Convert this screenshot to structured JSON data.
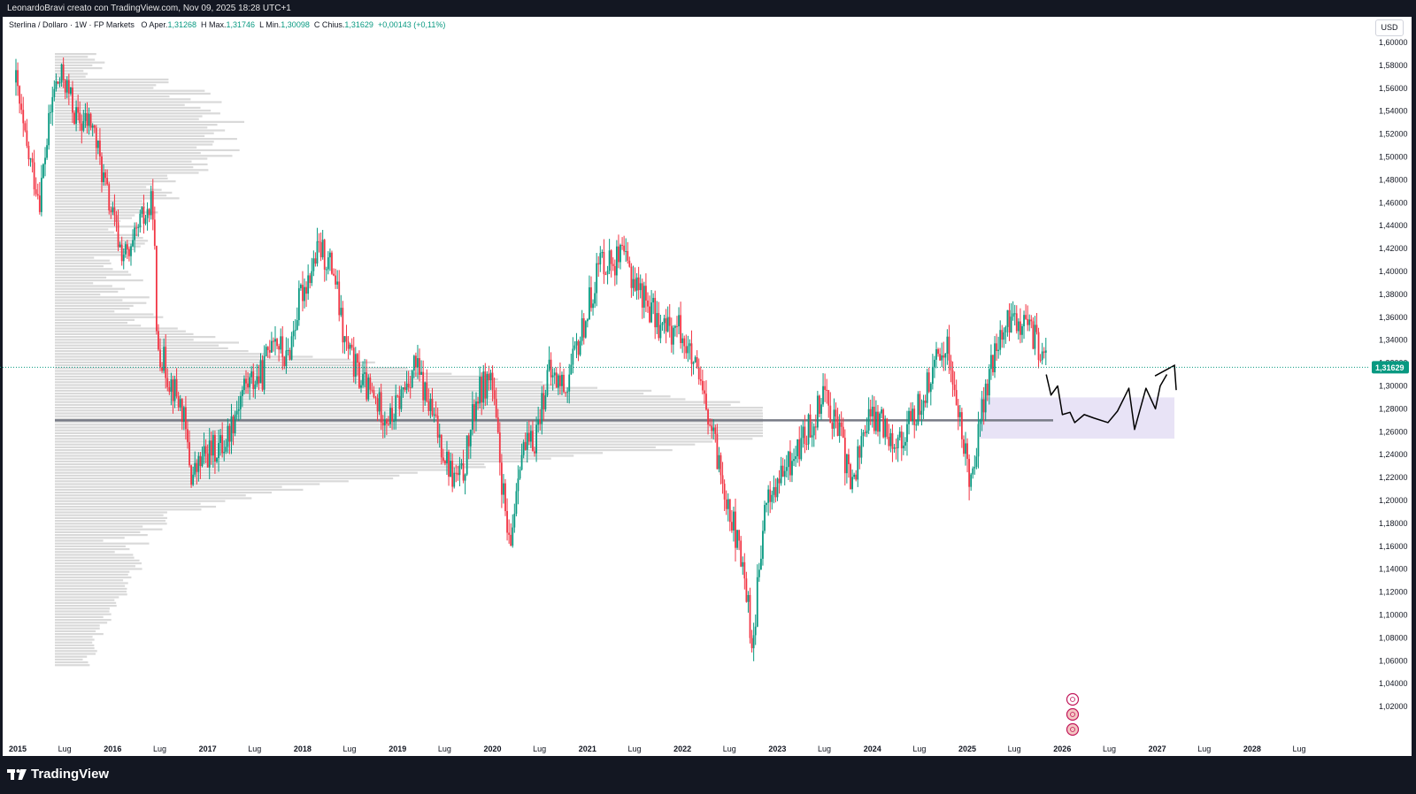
{
  "header": {
    "text": "LeonardoBravi creato con TradingView.com, Nov 09, 2025 18:28 UTC+1"
  },
  "legend": {
    "symbol": "Sterlina / Dollaro · 1W · FP Markets",
    "open_label": "O",
    "open_key": "Aper.",
    "open": "1,31268",
    "high_label": "H",
    "high_key": "Max.",
    "high": "1,31746",
    "low_label": "L",
    "low_key": "Min.",
    "low": "1,30098",
    "close_label": "C",
    "close_key": "Chius.",
    "close": "1,31629",
    "change": "+0,00143 (+0,11%)"
  },
  "currency_button": "USD",
  "last_price": "1,31629",
  "footer": {
    "brand": "TradingView"
  },
  "colors": {
    "up": "#089981",
    "down": "#f23645",
    "volume_profile": "#d9d9d9",
    "poc_line": "#787b86",
    "zone": "#e8e3f6",
    "price_line": "#089981"
  },
  "chart_data": {
    "type": "candlestick",
    "ylim": [
      1.0,
      1.6
    ],
    "y_ticks": [
      "1,60000",
      "1,58000",
      "1,56000",
      "1,54000",
      "1,52000",
      "1,50000",
      "1,48000",
      "1,46000",
      "1,44000",
      "1,42000",
      "1,40000",
      "1,38000",
      "1,36000",
      "1,34000",
      "1,32000",
      "1,30000",
      "1,28000",
      "1,26000",
      "1,24000",
      "1,22000",
      "1,20000",
      "1,18000",
      "1,16000",
      "1,14000",
      "1,12000",
      "1,10000",
      "1,08000",
      "1,06000",
      "1,04000",
      "1,02000"
    ],
    "x_ticks": [
      {
        "label": "2015",
        "year": true
      },
      {
        "label": "Lug",
        "year": false
      },
      {
        "label": "2016",
        "year": true
      },
      {
        "label": "Lug",
        "year": false
      },
      {
        "label": "2017",
        "year": true
      },
      {
        "label": "Lug",
        "year": false
      },
      {
        "label": "2018",
        "year": true
      },
      {
        "label": "Lug",
        "year": false
      },
      {
        "label": "2019",
        "year": true
      },
      {
        "label": "Lug",
        "year": false
      },
      {
        "label": "2020",
        "year": true
      },
      {
        "label": "Lug",
        "year": false
      },
      {
        "label": "2021",
        "year": true
      },
      {
        "label": "Lug",
        "year": false
      },
      {
        "label": "2022",
        "year": true
      },
      {
        "label": "Lug",
        "year": false
      },
      {
        "label": "2023",
        "year": true
      },
      {
        "label": "Lug",
        "year": false
      },
      {
        "label": "2024",
        "year": true
      },
      {
        "label": "Lug",
        "year": false
      },
      {
        "label": "2025",
        "year": true
      },
      {
        "label": "Lug",
        "year": false
      },
      {
        "label": "2026",
        "year": true
      },
      {
        "label": "Lug",
        "year": false
      },
      {
        "label": "2027",
        "year": true
      },
      {
        "label": "Lug",
        "year": false
      },
      {
        "label": "2028",
        "year": true
      },
      {
        "label": "Lug",
        "year": false
      }
    ],
    "price_path": [
      [
        2015.0,
        1.565
      ],
      [
        2015.1,
        1.51
      ],
      [
        2015.25,
        1.465
      ],
      [
        2015.4,
        1.56
      ],
      [
        2015.5,
        1.57
      ],
      [
        2015.65,
        1.53
      ],
      [
        2015.8,
        1.53
      ],
      [
        2015.95,
        1.47
      ],
      [
        2016.1,
        1.42
      ],
      [
        2016.2,
        1.41
      ],
      [
        2016.3,
        1.44
      ],
      [
        2016.45,
        1.46
      ],
      [
        2016.48,
        1.34
      ],
      [
        2016.6,
        1.31
      ],
      [
        2016.75,
        1.28
      ],
      [
        2016.85,
        1.22
      ],
      [
        2017.0,
        1.24
      ],
      [
        2017.2,
        1.25
      ],
      [
        2017.4,
        1.3
      ],
      [
        2017.6,
        1.31
      ],
      [
        2017.7,
        1.35
      ],
      [
        2017.85,
        1.32
      ],
      [
        2018.0,
        1.38
      ],
      [
        2018.2,
        1.42
      ],
      [
        2018.35,
        1.4
      ],
      [
        2018.45,
        1.34
      ],
      [
        2018.6,
        1.31
      ],
      [
        2018.75,
        1.29
      ],
      [
        2018.95,
        1.27
      ],
      [
        2019.1,
        1.3
      ],
      [
        2019.2,
        1.32
      ],
      [
        2019.4,
        1.27
      ],
      [
        2019.6,
        1.22
      ],
      [
        2019.7,
        1.22
      ],
      [
        2019.85,
        1.29
      ],
      [
        2020.0,
        1.31
      ],
      [
        2020.2,
        1.15
      ],
      [
        2020.3,
        1.24
      ],
      [
        2020.45,
        1.25
      ],
      [
        2020.6,
        1.31
      ],
      [
        2020.8,
        1.3
      ],
      [
        2021.0,
        1.36
      ],
      [
        2021.15,
        1.41
      ],
      [
        2021.4,
        1.41
      ],
      [
        2021.6,
        1.38
      ],
      [
        2021.8,
        1.35
      ],
      [
        2022.0,
        1.35
      ],
      [
        2022.2,
        1.3
      ],
      [
        2022.35,
        1.25
      ],
      [
        2022.5,
        1.2
      ],
      [
        2022.7,
        1.12
      ],
      [
        2022.75,
        1.07
      ],
      [
        2022.9,
        1.2
      ],
      [
        2023.0,
        1.21
      ],
      [
        2023.2,
        1.24
      ],
      [
        2023.4,
        1.27
      ],
      [
        2023.5,
        1.3
      ],
      [
        2023.7,
        1.25
      ],
      [
        2023.8,
        1.21
      ],
      [
        2023.95,
        1.27
      ],
      [
        2024.1,
        1.27
      ],
      [
        2024.3,
        1.25
      ],
      [
        2024.5,
        1.28
      ],
      [
        2024.7,
        1.32
      ],
      [
        2024.8,
        1.34
      ],
      [
        2024.95,
        1.26
      ],
      [
        2025.0,
        1.24
      ],
      [
        2025.05,
        1.22
      ],
      [
        2025.2,
        1.29
      ],
      [
        2025.35,
        1.34
      ],
      [
        2025.5,
        1.36
      ],
      [
        2025.6,
        1.355
      ],
      [
        2025.75,
        1.34
      ],
      [
        2025.86,
        1.316
      ]
    ],
    "volume_profile_poc": 1.27,
    "zone": {
      "x_start": 2025.15,
      "x_end": 2027.2,
      "y_low": 1.254,
      "y_high": 1.29
    },
    "projection_path": [
      [
        2025.85,
        1.31
      ],
      [
        2025.9,
        1.292
      ],
      [
        2025.97,
        1.3
      ],
      [
        2026.02,
        1.275
      ],
      [
        2026.1,
        1.277
      ],
      [
        2026.15,
        1.268
      ],
      [
        2026.25,
        1.275
      ],
      [
        2026.35,
        1.272
      ],
      [
        2026.5,
        1.268
      ],
      [
        2026.6,
        1.278
      ],
      [
        2026.72,
        1.298
      ],
      [
        2026.78,
        1.262
      ],
      [
        2026.9,
        1.298
      ],
      [
        2027.0,
        1.28
      ],
      [
        2027.05,
        1.3
      ],
      [
        2027.12,
        1.31
      ],
      [
        2027.2,
        1.318
      ],
      [
        2027.25,
        1.3
      ]
    ]
  }
}
